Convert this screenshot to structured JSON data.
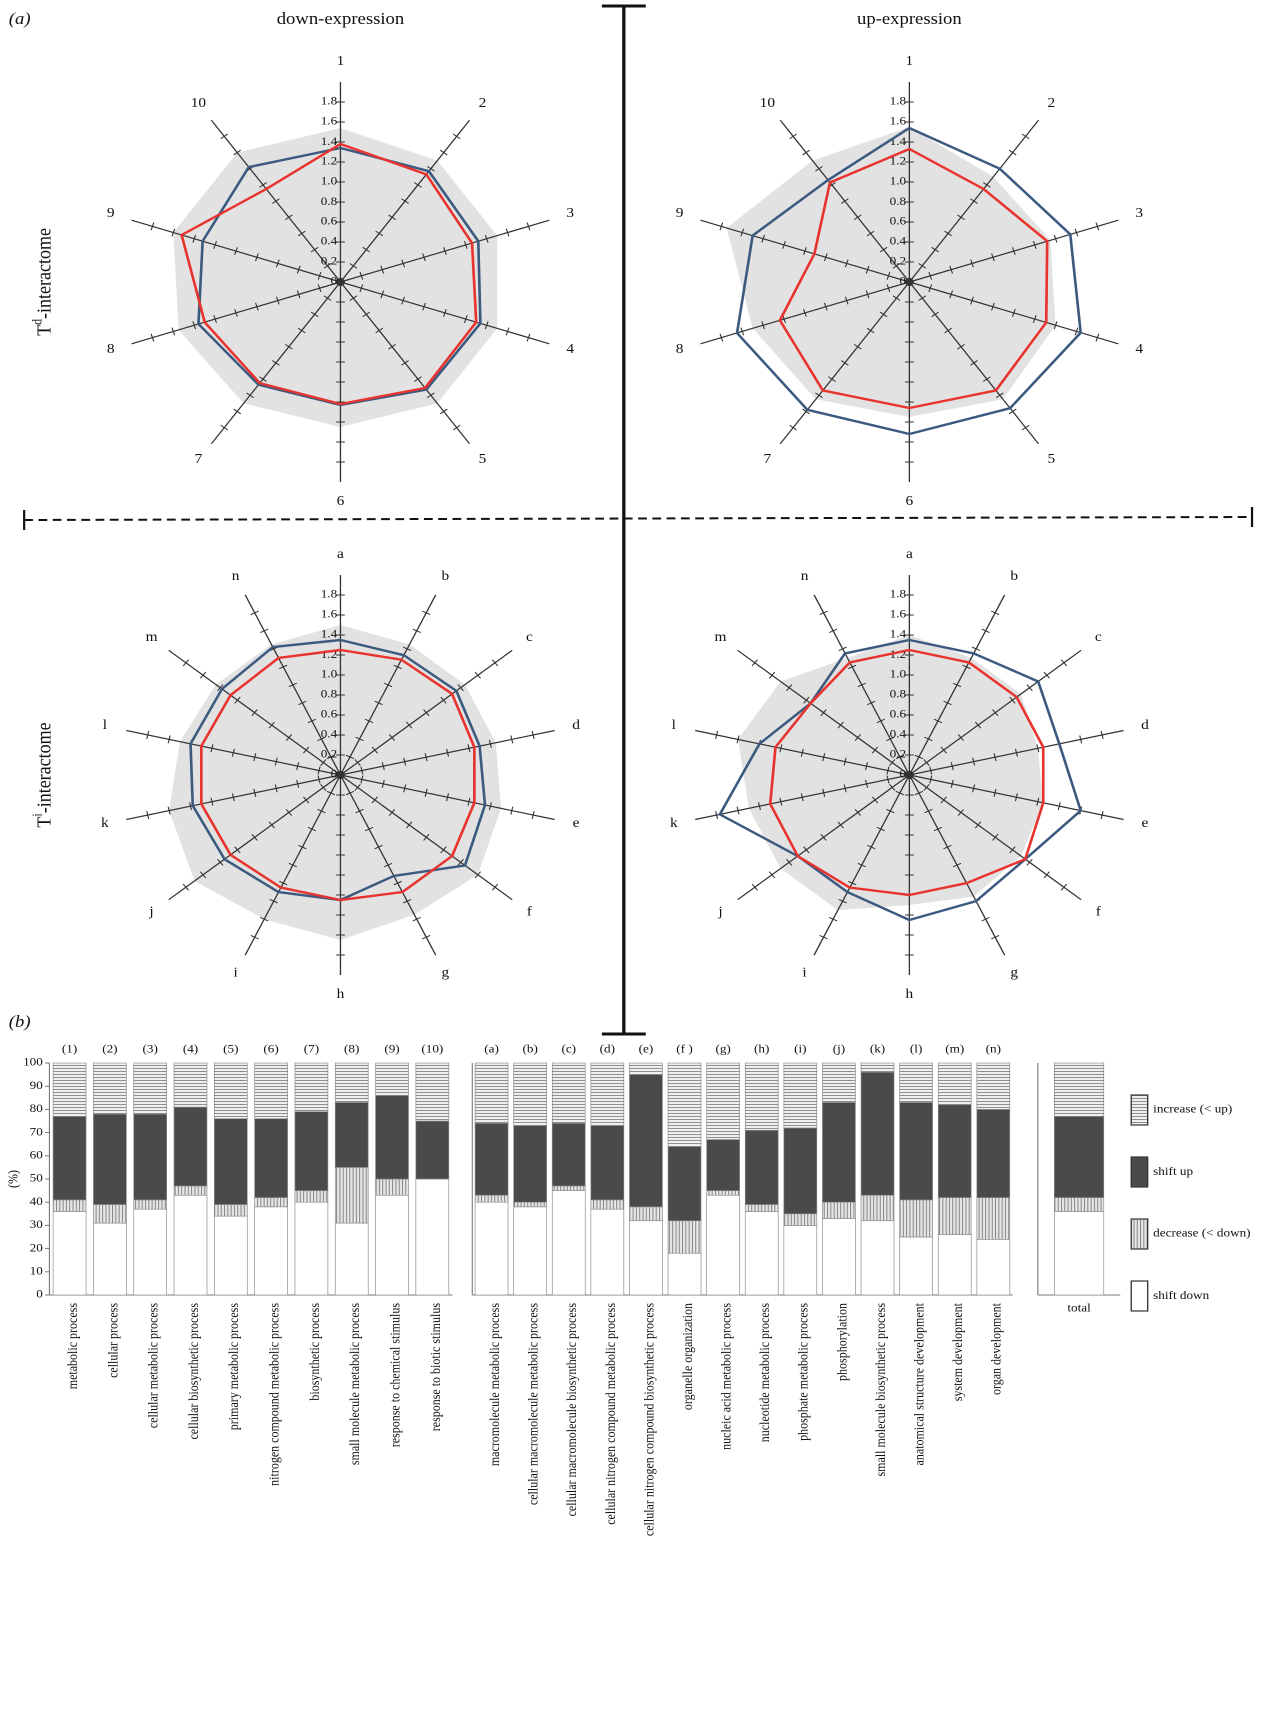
{
  "figure": {
    "panel_a": "(a)",
    "panel_b": "(b)",
    "columns": [
      "down-expression",
      "up-expression"
    ],
    "rows": [
      {
        "base": "T",
        "sup": "d",
        "rest": "-interactome"
      },
      {
        "base": "T",
        "sup": "i",
        "rest": "-interactome"
      }
    ]
  },
  "chart_data": [
    {
      "type": "radar",
      "axes": [
        "1",
        "2",
        "3",
        "4",
        "5",
        "6",
        "7",
        "8",
        "9",
        "10"
      ],
      "rlim": [
        0,
        2
      ],
      "rticks": [
        0,
        0.2,
        0.4,
        0.6,
        0.8,
        {
          "value": 1,
          "label": "1.0"
        },
        1.2,
        1.4,
        1.6,
        1.8
      ],
      "series": [
        {
          "color": "#e2e2e2",
          "fill": true,
          "values": [
            1.54,
            1.5,
            1.5,
            1.5,
            1.5,
            1.45,
            1.5,
            1.55,
            1.6,
            1.6
          ]
        },
        {
          "color": "#3c5a80",
          "values": [
            1.34,
            1.37,
            1.32,
            1.34,
            1.33,
            1.23,
            1.27,
            1.36,
            1.32,
            1.42
          ]
        },
        {
          "color": "#e8332e",
          "values": [
            1.38,
            1.33,
            1.26,
            1.3,
            1.31,
            1.22,
            1.25,
            1.3,
            1.52,
            1.15
          ]
        }
      ]
    },
    {
      "type": "radar",
      "axes": [
        "1",
        "2",
        "3",
        "4",
        "5",
        "6",
        "7",
        "8",
        "9",
        "10"
      ],
      "rlim": [
        0,
        2
      ],
      "rticks": [
        0,
        0.2,
        0.4,
        0.6,
        0.8,
        {
          "value": 1,
          "label": "1.0"
        },
        1.2,
        1.4,
        1.6,
        1.8
      ],
      "series": [
        {
          "color": "#e2e2e2",
          "fill": true,
          "values": [
            1.55,
            1.3,
            1.35,
            1.4,
            1.45,
            1.35,
            1.45,
            1.5,
            1.75,
            1.5
          ]
        },
        {
          "color": "#3c5a80",
          "values": [
            1.54,
            1.4,
            1.54,
            1.64,
            1.56,
            1.52,
            1.58,
            1.65,
            1.5,
            1.26
          ]
        },
        {
          "color": "#e8332e",
          "values": [
            1.33,
            1.15,
            1.32,
            1.31,
            1.34,
            1.26,
            1.34,
            1.24,
            0.91,
            1.23
          ]
        }
      ]
    },
    {
      "type": "radar",
      "axes": [
        "a",
        "b",
        "c",
        "d",
        "e",
        "f",
        "g",
        "h",
        "i",
        "j",
        "k",
        "l",
        "m",
        "n"
      ],
      "rlim": [
        0,
        2
      ],
      "rticks": [
        0,
        0.2,
        0.4,
        0.6,
        0.8,
        {
          "value": 1,
          "label": "1.0"
        },
        1.2,
        1.4,
        1.6,
        1.8
      ],
      "series": [
        {
          "color": "#e2e2e2",
          "fill": true,
          "values": [
            1.5,
            1.45,
            1.45,
            1.45,
            1.5,
            1.6,
            1.55,
            1.65,
            1.6,
            1.7,
            1.6,
            1.5,
            1.45,
            1.45
          ]
        },
        {
          "color": "#3c5a80",
          "values": [
            1.35,
            1.33,
            1.35,
            1.3,
            1.35,
            1.45,
            1.12,
            1.25,
            1.3,
            1.35,
            1.38,
            1.4,
            1.38,
            1.42
          ]
        },
        {
          "color": "#e8332e",
          "values": [
            1.25,
            1.28,
            1.3,
            1.25,
            1.25,
            1.3,
            1.3,
            1.25,
            1.25,
            1.28,
            1.3,
            1.3,
            1.28,
            1.3
          ]
        }
      ]
    },
    {
      "type": "radar",
      "axes": [
        "a",
        "b",
        "c",
        "d",
        "e",
        "f",
        "g",
        "h",
        "i",
        "j",
        "k",
        "l",
        "m",
        "n"
      ],
      "rlim": [
        0,
        2
      ],
      "rticks": [
        0,
        0.2,
        0.4,
        0.6,
        0.8,
        {
          "value": 1,
          "label": "1.0"
        },
        1.2,
        1.4,
        1.6,
        1.8
      ],
      "series": [
        {
          "color": "#e2e2e2",
          "fill": true,
          "values": [
            1.4,
            1.3,
            1.3,
            1.2,
            1.25,
            1.3,
            1.35,
            1.3,
            1.5,
            1.5,
            1.5,
            1.6,
            1.5,
            1.3
          ]
        },
        {
          "color": "#3c5a80",
          "values": [
            1.35,
            1.35,
            1.5,
            1.4,
            1.6,
            1.35,
            1.4,
            1.45,
            1.3,
            1.3,
            1.77,
            1.4,
            1.15,
            1.35
          ]
        },
        {
          "color": "#e8332e",
          "values": [
            1.25,
            1.25,
            1.25,
            1.25,
            1.25,
            1.35,
            1.2,
            1.2,
            1.25,
            1.3,
            1.3,
            1.25,
            1.15,
            1.25
          ]
        }
      ]
    },
    {
      "type": "stacked_bar",
      "ylabel": "(%)",
      "ylim": [
        0,
        100
      ],
      "yticks": [
        0,
        10,
        20,
        30,
        40,
        50,
        60,
        70,
        80,
        90,
        100
      ],
      "codes": [
        "(1)",
        "(2)",
        "(3)",
        "(4)",
        "(5)",
        "(6)",
        "(7)",
        "(8)",
        "(9)",
        "(10)"
      ],
      "categories": [
        "metabolic process",
        "cellular process",
        "cellular metabolic process",
        "cellular biosynthetic process",
        "primary metabolic process",
        "nitrogen compound metabolic process",
        "biosynthetic process",
        "small molecule metabolic process",
        "response to chemical stimulus",
        "response to biotic stimulus"
      ],
      "series": [
        {
          "color": "#ffffff",
          "values": [
            36,
            31,
            37,
            43,
            34,
            38,
            40,
            31,
            43,
            50
          ]
        },
        {
          "color": "#e6e6e6",
          "hatch": "vertical",
          "values": [
            5,
            8,
            4,
            4,
            5,
            4,
            5,
            24,
            7,
            0
          ]
        },
        {
          "color": "#4a4a4a",
          "values": [
            36,
            39,
            37,
            34,
            37,
            34,
            34,
            28,
            36,
            25
          ]
        },
        {
          "color": "#efefef",
          "hatch": "horizontal",
          "values": [
            23,
            22,
            22,
            19,
            24,
            24,
            21,
            17,
            14,
            25
          ]
        }
      ]
    },
    {
      "type": "stacked_bar",
      "ylim": [
        0,
        100
      ],
      "codes": [
        "(a)",
        "(b)",
        "(c)",
        "(d)",
        "(e)",
        "(f )",
        "(g)",
        "(h)",
        "(i)",
        "(j)",
        "(k)",
        "(l)",
        "(m)",
        "(n)"
      ],
      "categories": [
        "macromolecule metabolic process",
        "cellular macromolecule metabolic process",
        "cellular macromolecule biosynthetic process",
        "cellular nitrogen compound metabolic process",
        "cellular nitrogen compound biosynthetic process",
        "organelle organization",
        "nucleic acid metabolic process",
        "nucleotide metabolic process",
        "phosphate metabolic process",
        "phosphorylation",
        "small molecule biosynthetic process",
        "anatomical structure development",
        "system development",
        "organ development"
      ],
      "series": [
        {
          "color": "#ffffff",
          "values": [
            40,
            38,
            45,
            37,
            32,
            18,
            43,
            36,
            30,
            33,
            32,
            25,
            26,
            24
          ]
        },
        {
          "color": "#e6e6e6",
          "hatch": "vertical",
          "values": [
            3,
            2,
            2,
            4,
            6,
            14,
            2,
            3,
            5,
            7,
            11,
            16,
            16,
            18
          ]
        },
        {
          "color": "#4a4a4a",
          "values": [
            31,
            33,
            27,
            32,
            57,
            32,
            22,
            32,
            37,
            43,
            53,
            42,
            40,
            38
          ]
        },
        {
          "color": "#efefef",
          "hatch": "horizontal",
          "values": [
            26,
            27,
            26,
            27,
            5,
            36,
            33,
            29,
            28,
            17,
            4,
            17,
            18,
            20
          ]
        }
      ]
    },
    {
      "type": "stacked_bar",
      "ylim": [
        0,
        100
      ],
      "categories": [
        "total"
      ],
      "series": [
        {
          "name": "shift down",
          "color": "#ffffff",
          "values": [
            36
          ]
        },
        {
          "name": "decrease (< down)",
          "color": "#e6e6e6",
          "hatch": "vertical",
          "values": [
            6
          ]
        },
        {
          "name": "shift up",
          "color": "#4a4a4a",
          "values": [
            35
          ]
        },
        {
          "name": "increase (< up)",
          "color": "#efefef",
          "hatch": "horizontal",
          "values": [
            23
          ]
        }
      ]
    }
  ]
}
